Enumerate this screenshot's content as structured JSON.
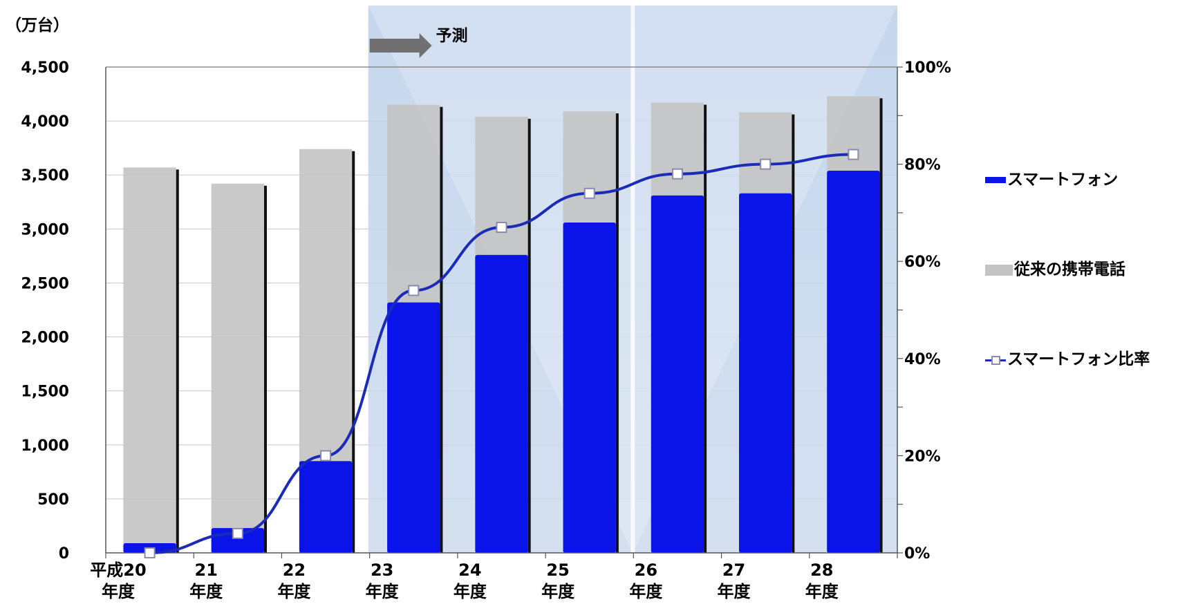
{
  "chart_data": {
    "type": "bar",
    "unit_label": "（万台）",
    "forecast_label": "予測",
    "categories": [
      [
        "平成20",
        "年度"
      ],
      [
        "21",
        "年度"
      ],
      [
        "22",
        "年度"
      ],
      [
        "23",
        "年度"
      ],
      [
        "24",
        "年度"
      ],
      [
        "25",
        "年度"
      ],
      [
        "26",
        "年度"
      ],
      [
        "27",
        "年度"
      ],
      [
        "28",
        "年度"
      ]
    ],
    "series": [
      {
        "name": "スマートフォン",
        "type": "bar",
        "color": "#0a14e8",
        "values": [
          90,
          230,
          850,
          2320,
          2760,
          3060,
          3310,
          3330,
          3540
        ]
      },
      {
        "name": "従来の携帯電話",
        "type": "bar",
        "color": "#c4c4c4",
        "values": [
          3570,
          3420,
          3740,
          4150,
          4040,
          4090,
          4170,
          4080,
          4230
        ]
      },
      {
        "name": "スマートフォン比率",
        "type": "line",
        "axis": "right",
        "color": "#1a2bb8",
        "values": [
          0.0,
          0.04,
          0.2,
          0.54,
          0.67,
          0.74,
          0.78,
          0.8,
          0.82
        ]
      }
    ],
    "yaxis_left": {
      "min": 0,
      "max": 4500,
      "ticks": [
        "0",
        "500",
        "1,000",
        "1,500",
        "2,000",
        "2,500",
        "3,000",
        "3,500",
        "4,000",
        "4,500"
      ]
    },
    "yaxis_right": {
      "min": 0,
      "max": 1,
      "ticks": [
        "0%",
        "20%",
        "40%",
        "60%",
        "80%",
        "100%"
      ]
    },
    "forecast_from_index": 3,
    "legend_position": "right",
    "grid": true
  }
}
